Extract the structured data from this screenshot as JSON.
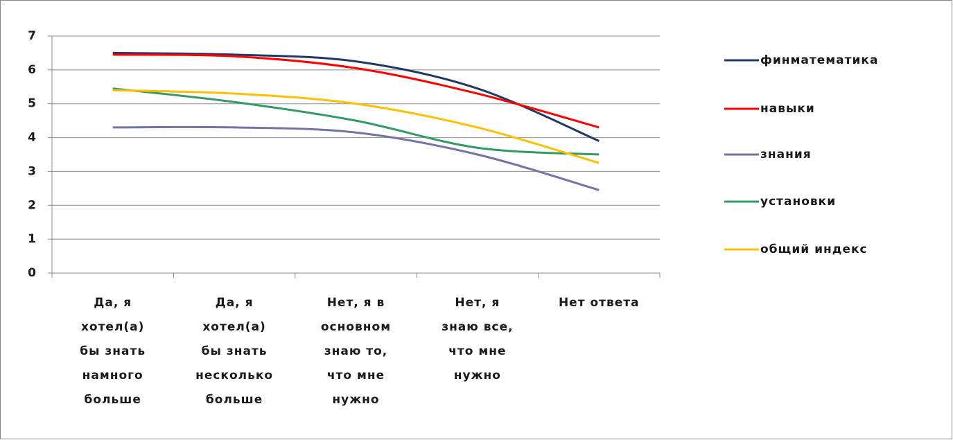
{
  "chart_data": {
    "type": "line",
    "categories": [
      "Да, я хотел(а) бы знать намного больше",
      "Да, я хотел(а) бы знать несколько больше",
      "Нет, я в основном знаю то, что мне нужно",
      "Нет, я знаю все, что мне нужно",
      "Нет ответа"
    ],
    "series": [
      {
        "name": "финматематика",
        "color": "#1f3864",
        "values": [
          6.5,
          6.45,
          6.25,
          5.45,
          3.9
        ]
      },
      {
        "name": "навыки",
        "color": "#ff0000",
        "values": [
          6.45,
          6.4,
          6.05,
          5.3,
          4.3
        ]
      },
      {
        "name": "знания",
        "color": "#7373a6",
        "values": [
          4.3,
          4.3,
          4.15,
          3.5,
          2.45
        ]
      },
      {
        "name": "установки",
        "color": "#339966",
        "values": [
          5.45,
          5.05,
          4.5,
          3.7,
          3.5
        ]
      },
      {
        "name": "общий индекс",
        "color": "#ffc000",
        "values": [
          5.4,
          5.3,
          5.0,
          4.3,
          3.25
        ]
      }
    ],
    "ylim": [
      0,
      7
    ],
    "yticks": [
      0,
      1,
      2,
      3,
      4,
      5,
      6,
      7
    ],
    "grid": true,
    "legend": "right"
  }
}
